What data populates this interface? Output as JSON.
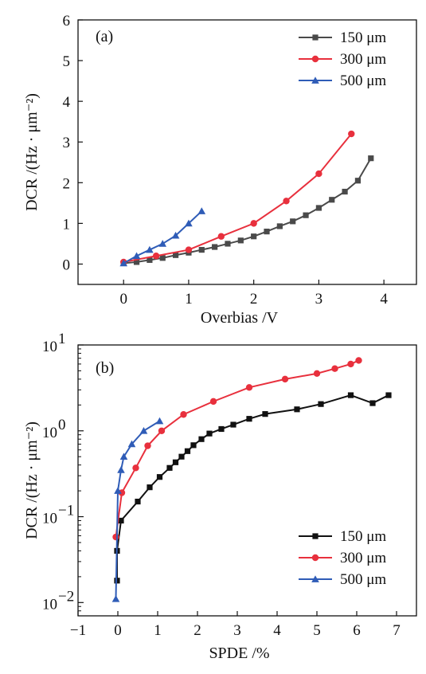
{
  "figure": {
    "panel_a_label": "(a)",
    "panel_b_label": "(b)"
  },
  "chart_data": [
    {
      "panel": "(a)",
      "type": "line",
      "xlabel": "Overbias /V",
      "ylabel": "DCR /(Hz · μm⁻²)",
      "xlim": [
        -0.7,
        4.5
      ],
      "ylim": [
        -0.5,
        6
      ],
      "xticks": [
        "0",
        "1",
        "2",
        "3",
        "4"
      ],
      "yticks": [
        "0",
        "1",
        "2",
        "3",
        "4",
        "5",
        "6"
      ],
      "xtick_values": [
        0,
        1,
        2,
        3,
        4
      ],
      "ytick_values": [
        0,
        1,
        2,
        3,
        4,
        5,
        6
      ],
      "grid": false,
      "legend": "top-right",
      "series": [
        {
          "name": "150 μm",
          "color": "#4a4a4a",
          "marker": "square",
          "x": [
            0,
            0.2,
            0.4,
            0.6,
            0.8,
            1.0,
            1.2,
            1.4,
            1.6,
            1.8,
            2.0,
            2.2,
            2.4,
            2.6,
            2.8,
            3.0,
            3.2,
            3.4,
            3.6,
            3.8
          ],
          "y": [
            0.02,
            0.05,
            0.1,
            0.15,
            0.22,
            0.28,
            0.35,
            0.42,
            0.5,
            0.58,
            0.68,
            0.8,
            0.93,
            1.05,
            1.2,
            1.38,
            1.58,
            1.78,
            2.05,
            2.6
          ]
        },
        {
          "name": "300 μm",
          "color": "#e8303d",
          "marker": "circle",
          "x": [
            0,
            0.5,
            1.0,
            1.5,
            2.0,
            2.5,
            3.0,
            3.5
          ],
          "y": [
            0.05,
            0.2,
            0.35,
            0.68,
            1.0,
            1.55,
            2.22,
            3.2
          ]
        },
        {
          "name": "500 μm",
          "color": "#2f5cb7",
          "marker": "triangle",
          "x": [
            0,
            0.2,
            0.4,
            0.6,
            0.8,
            1.0,
            1.2
          ],
          "y": [
            0.02,
            0.2,
            0.35,
            0.5,
            0.7,
            1.0,
            1.3
          ]
        }
      ]
    },
    {
      "panel": "(b)",
      "type": "line",
      "xlabel": "SPDE /%",
      "ylabel": "DCR /(Hz · μm⁻²)",
      "xlim": [
        -1,
        7.5
      ],
      "ylim": [
        0.007,
        10
      ],
      "yscale": "log",
      "xticks": [
        "−1",
        "0",
        "1",
        "2",
        "3",
        "4",
        "5",
        "6",
        "7"
      ],
      "xtick_values": [
        -1,
        0,
        1,
        2,
        3,
        4,
        5,
        6,
        7
      ],
      "ytick_values": [
        0.01,
        0.1,
        1,
        10
      ],
      "ytick_base": "10",
      "ytick_exponents": [
        "−2",
        "−1",
        "0",
        "1"
      ],
      "grid": false,
      "legend": "bottom-right",
      "series": [
        {
          "name": "150 μm",
          "color": "#111111",
          "marker": "square",
          "x": [
            -0.02,
            -0.02,
            0.08,
            0.5,
            0.8,
            1.05,
            1.3,
            1.45,
            1.6,
            1.75,
            1.9,
            2.1,
            2.3,
            2.6,
            2.9,
            3.3,
            3.7,
            4.5,
            5.1,
            5.85,
            6.4,
            6.8
          ],
          "y": [
            0.018,
            0.04,
            0.09,
            0.15,
            0.22,
            0.29,
            0.37,
            0.43,
            0.5,
            0.58,
            0.68,
            0.8,
            0.93,
            1.05,
            1.18,
            1.38,
            1.57,
            1.78,
            2.05,
            2.6,
            2.1,
            2.6
          ]
        },
        {
          "name": "300 μm",
          "color": "#e8303d",
          "marker": "circle",
          "x": [
            -0.05,
            0.1,
            0.45,
            0.75,
            1.1,
            1.65,
            2.4,
            3.3,
            4.2,
            5.0,
            5.45,
            5.85,
            6.05
          ],
          "y": [
            0.058,
            0.19,
            0.37,
            0.67,
            1.0,
            1.55,
            2.2,
            3.2,
            4.0,
            4.65,
            5.3,
            6.0,
            6.6
          ]
        },
        {
          "name": "500 μm",
          "color": "#2f5cb7",
          "marker": "triangle",
          "x": [
            -0.05,
            0.0,
            0.08,
            0.15,
            0.35,
            0.65,
            1.05
          ],
          "y": [
            0.011,
            0.2,
            0.35,
            0.5,
            0.7,
            1.0,
            1.3
          ]
        }
      ]
    }
  ]
}
